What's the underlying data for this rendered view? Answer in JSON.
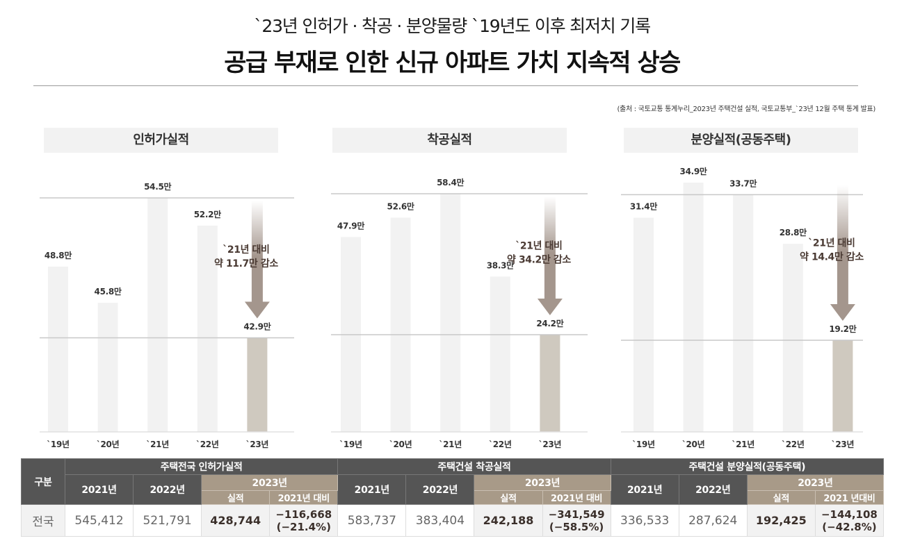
{
  "header": {
    "subtitle": "`23년 인허가 · 착공 · 분양물량 `19년도 이후 최저치 기록",
    "title": "공급 부재로 인한 신규 아파트 가치 지속적 상승",
    "source": "(출처 : 국토교통 통계누리_2023년 주택건설 실적, 국토교통부_`23년 12월 주택 통계 발표)"
  },
  "colors": {
    "bar_default": "#f2f2f2",
    "bar_highlight": "#cfc9bf",
    "arrow": "#a4968d",
    "table_header": "#555555",
    "table_header_2023": "#a89a88",
    "annotation": "#4a3a33"
  },
  "chart_data": [
    {
      "type": "bar",
      "title": "인허가실적",
      "categories": [
        "`19년",
        "`20년",
        "`21년",
        "`22년",
        "`23년"
      ],
      "values": [
        48.8,
        45.8,
        54.5,
        52.2,
        42.9
      ],
      "value_labels": [
        "48.8만",
        "45.8만",
        "54.5만",
        "52.2만",
        "42.9만"
      ],
      "unit": "만",
      "highlight_index": 4,
      "annotation": [
        "`21년 대비",
        "약 11.7만 감소"
      ],
      "reference_lines": [
        54.5,
        42.9
      ],
      "ylim": [
        35.1,
        57.0
      ],
      "xlabel": "",
      "ylabel": "",
      "grid": false
    },
    {
      "type": "bar",
      "title": "착공실적",
      "categories": [
        "`19년",
        "`20년",
        "`21년",
        "`22년",
        "`23년"
      ],
      "values": [
        47.9,
        52.6,
        58.4,
        38.3,
        24.2
      ],
      "value_labels": [
        "47.9만",
        "52.6만",
        "58.4만",
        "38.3만",
        "24.2만"
      ],
      "unit": "만",
      "highlight_index": 4,
      "annotation": [
        "`21년 대비",
        "약 34.2만 감소"
      ],
      "reference_lines": [
        58.4,
        24.2
      ],
      "ylim": [
        0.6,
        62.0
      ],
      "xlabel": "",
      "ylabel": "",
      "grid": false
    },
    {
      "type": "bar",
      "title": "분양실적(공동주택)",
      "categories": [
        "`19년",
        "`20년",
        "`21년",
        "`22년",
        "`23년"
      ],
      "values": [
        31.4,
        34.9,
        33.7,
        28.8,
        19.2
      ],
      "value_labels": [
        "31.4만",
        "34.9만",
        "33.7만",
        "28.8만",
        "19.2만"
      ],
      "unit": "만",
      "highlight_index": 4,
      "annotation": [
        "`21년 대비",
        "약 14.4만 감소"
      ],
      "reference_lines": [
        33.7,
        19.2
      ],
      "ylim": [
        10.07,
        36.5
      ],
      "xlabel": "",
      "ylabel": "",
      "grid": false
    }
  ],
  "table": {
    "category_header": "구분",
    "groups": [
      {
        "title": "주택전국 인허가실적",
        "y2021": "2021년",
        "y2022": "2022년",
        "y2023": "2023년",
        "actual": "실적",
        "vs2021": "2021년 대비"
      },
      {
        "title": "주택건설 착공실적",
        "y2021": "2021년",
        "y2022": "2022년",
        "y2023": "2023년",
        "actual": "실적",
        "vs2021": "2021년 대비"
      },
      {
        "title": "주택건설 분양실적(공동주택)",
        "y2021": "2021년",
        "y2022": "2022년",
        "y2023": "2023년",
        "actual": "실적",
        "vs2021": "2021 년대비"
      }
    ],
    "rows": [
      {
        "label": "전국",
        "cells": [
          {
            "v2021": "545,412",
            "v2022": "521,791",
            "v2023": "428,744",
            "diff": "−116,668",
            "pct": "(−21.4%)"
          },
          {
            "v2021": "583,737",
            "v2022": "383,404",
            "v2023": "242,188",
            "diff": "−341,549",
            "pct": "(−58.5%)"
          },
          {
            "v2021": "336,533",
            "v2022": "287,624",
            "v2023": "192,425",
            "diff": "−144,108",
            "pct": "(−42.8%)"
          }
        ]
      }
    ]
  }
}
